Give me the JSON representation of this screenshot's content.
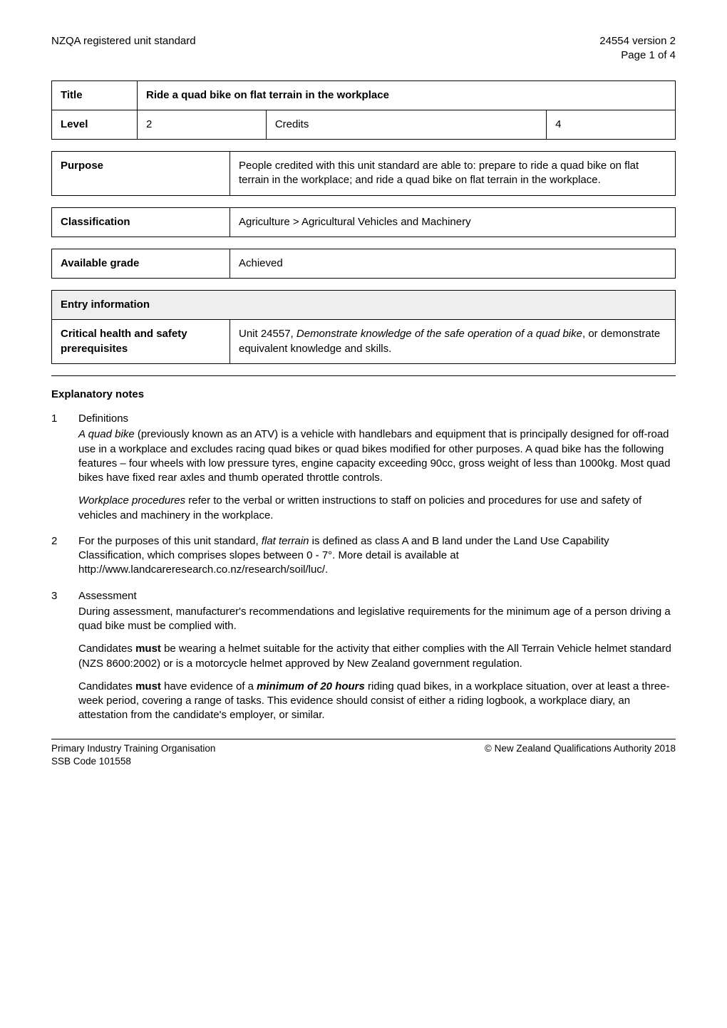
{
  "header": {
    "left": "NZQA registered unit standard",
    "right_line1": "24554 version 2",
    "right_line2": "Page 1 of 4"
  },
  "title_box": {
    "label": "Title",
    "value": "Ride a quad bike on flat terrain in the workplace"
  },
  "level_box": {
    "level_label": "Level",
    "level_value": "2",
    "credits_label": "Credits",
    "credits_value": "4"
  },
  "purpose_box": {
    "label": "Purpose",
    "value": "People credited with this unit standard are able to: prepare to ride a quad bike on flat terrain in the workplace; and ride a quad bike on flat terrain in the workplace."
  },
  "classification_box": {
    "label": "Classification",
    "value": "Agriculture > Agricultural Vehicles and Machinery"
  },
  "grade_box": {
    "label": "Available grade",
    "value": "Achieved"
  },
  "entry_box": {
    "header": "Entry information",
    "row_label": "Critical health and safety prerequisites",
    "row_value_pre": "Unit 24557, ",
    "row_value_italic": "Demonstrate knowledge of the safe operation of a quad bike",
    "row_value_post": ", or demonstrate equivalent knowledge and skills."
  },
  "explanatory_heading": "Explanatory notes",
  "notes": {
    "n1": {
      "num": "1",
      "subhead": "Definitions",
      "p1_pre": "",
      "p1_i1": "A quad bike",
      "p1_mid": " (previously known as an ATV) is a vehicle with handlebars and equipment that is principally designed for off-road use in a workplace and excludes racing quad bikes or quad bikes modified for other purposes.  A quad bike has the following features – four wheels with low pressure tyres, engine capacity exceeding 90cc, gross weight of less than 1000kg.  Most quad bikes have fixed rear axles and thumb operated throttle controls.",
      "p2_i1": "Workplace procedures",
      "p2_post": " refer to the verbal or written instructions to staff on policies and procedures for use and safety of vehicles and machinery in the workplace."
    },
    "n2": {
      "num": "2",
      "p_pre": "For the purposes of this unit standard, ",
      "p_i1": "flat terrain",
      "p_post": " is defined as class A and B land under the Land Use Capability Classification, which comprises slopes between 0 - 7°.  More detail is available at http://www.landcareresearch.co.nz/research/soil/luc/."
    },
    "n3": {
      "num": "3",
      "subhead": "Assessment",
      "p1": "During assessment, manufacturer's recommendations and legislative requirements for the minimum age of a person driving a quad bike must be complied with.",
      "p2_pre": "Candidates ",
      "p2_b1": "must",
      "p2_post": " be wearing a helmet suitable for the activity that either complies with the All Terrain Vehicle helmet standard (NZS 8600:2002) or is a motorcycle helmet approved by New Zealand government regulation.",
      "p3_pre": "Candidates ",
      "p3_b1": "must",
      "p3_mid1": " have evidence of a ",
      "p3_bi1": "minimum of 20 hours",
      "p3_post": " riding quad bikes, in a workplace situation, over at least a three-week period, covering a range of tasks. This evidence should consist of either a riding logbook, a workplace diary, an attestation from the candidate's employer, or similar."
    }
  },
  "footer": {
    "left_line1": "Primary Industry Training Organisation",
    "left_line2": "SSB Code 101558",
    "right": "© New Zealand Qualifications Authority 2018"
  },
  "colors": {
    "text": "#000000",
    "background": "#ffffff",
    "border": "#000000",
    "entry_header_bg": "#eeeeee"
  }
}
